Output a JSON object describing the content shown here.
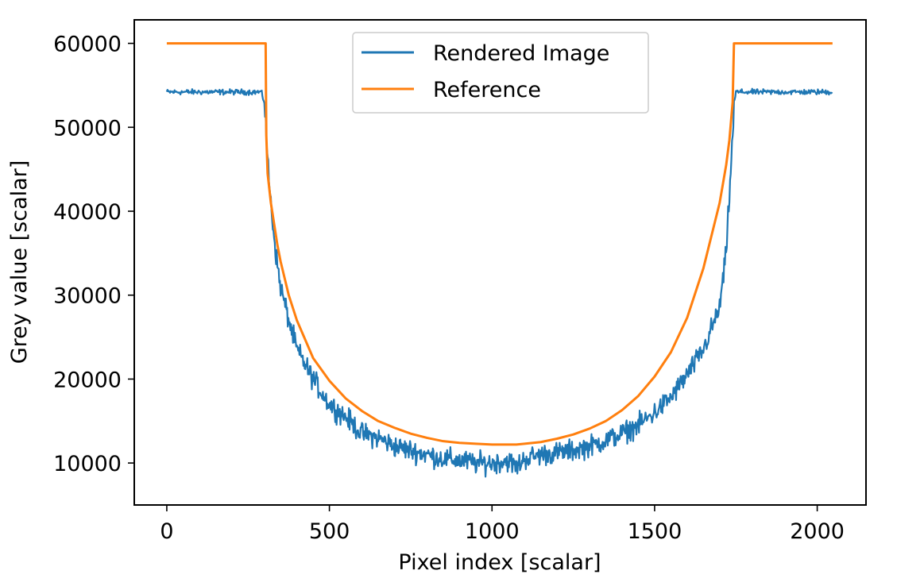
{
  "chart_data": {
    "type": "line",
    "xlabel": "Pixel index [scalar]",
    "ylabel": "Grey value [scalar]",
    "xlim": [
      -100,
      2150
    ],
    "ylim": [
      5000,
      62800
    ],
    "xticks": [
      0,
      500,
      1000,
      1500,
      2000
    ],
    "xtick_labels": [
      "0",
      "500",
      "1000",
      "1500",
      "2000"
    ],
    "yticks": [
      10000,
      20000,
      30000,
      40000,
      50000,
      60000
    ],
    "ytick_labels": [
      "10000",
      "20000",
      "30000",
      "40000",
      "50000",
      "60000"
    ],
    "grid": false,
    "legend_position": "top-center",
    "series": [
      {
        "name": "Rendered Image",
        "color": "#1f77b4",
        "x": [
          0,
          100,
          200,
          290,
          300,
          305,
          310,
          320,
          330,
          340,
          350,
          375,
          400,
          450,
          500,
          550,
          600,
          650,
          700,
          750,
          800,
          850,
          900,
          950,
          1000,
          1050,
          1075,
          1100,
          1150,
          1200,
          1250,
          1300,
          1350,
          1400,
          1450,
          1500,
          1550,
          1600,
          1650,
          1675,
          1700,
          1720,
          1730,
          1740,
          1745,
          1750,
          1760,
          1850,
          1950,
          2047
        ],
        "y": [
          54200,
          54200,
          54200,
          54200,
          53000,
          50000,
          46000,
          41000,
          37000,
          33500,
          31000,
          27000,
          23500,
          20000,
          17000,
          15500,
          13500,
          13000,
          12000,
          11500,
          11000,
          10500,
          10300,
          10000,
          10000,
          10300,
          9500,
          10500,
          11000,
          11200,
          11500,
          12000,
          12700,
          13500,
          14500,
          16000,
          17800,
          20500,
          23500,
          26000,
          28500,
          35000,
          42000,
          49000,
          53000,
          54200,
          54200,
          54200,
          54200,
          54200
        ],
        "noise": 900
      },
      {
        "name": "Reference",
        "color": "#ff7f0e",
        "x": [
          0,
          100,
          200,
          300,
          304,
          306,
          310,
          320,
          330,
          340,
          350,
          375,
          400,
          450,
          500,
          550,
          600,
          650,
          700,
          750,
          800,
          850,
          900,
          950,
          1000,
          1050,
          1075,
          1100,
          1150,
          1200,
          1250,
          1300,
          1350,
          1400,
          1450,
          1500,
          1550,
          1600,
          1650,
          1700,
          1720,
          1730,
          1740,
          1744,
          1746,
          1800,
          1900,
          2047
        ],
        "y": [
          60000,
          60000,
          60000,
          60000,
          60000,
          49000,
          44500,
          41000,
          38500,
          36000,
          34000,
          30000,
          27000,
          22500,
          19800,
          17700,
          16200,
          15000,
          14200,
          13500,
          13000,
          12600,
          12400,
          12300,
          12200,
          12200,
          12200,
          12300,
          12500,
          12900,
          13400,
          14100,
          15000,
          16300,
          18000,
          20300,
          23200,
          27300,
          33200,
          41000,
          45500,
          48500,
          53000,
          60000,
          60000,
          60000,
          60000,
          60000
        ]
      }
    ]
  }
}
